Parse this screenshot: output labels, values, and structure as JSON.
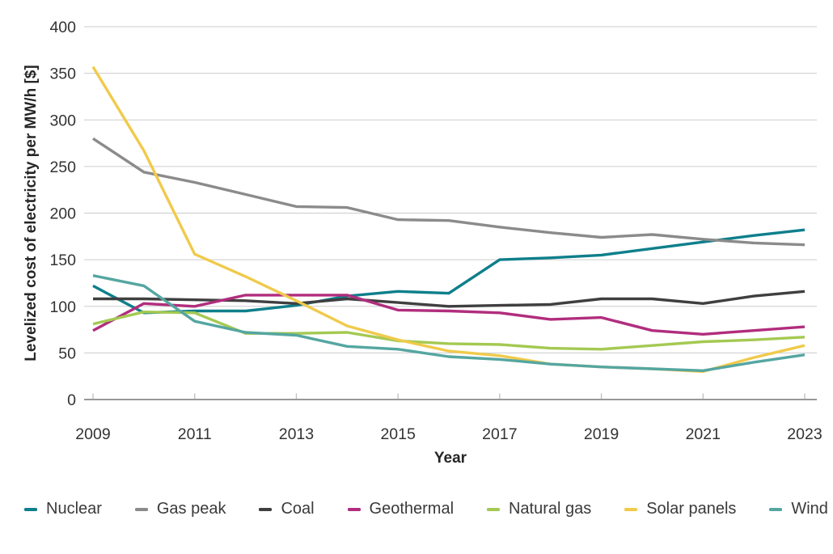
{
  "chart_data": {
    "type": "line",
    "title": "",
    "xlabel": "Year",
    "ylabel": "Levelized cost of electricity per MW/h [$]",
    "x": [
      2009,
      2010,
      2011,
      2012,
      2013,
      2014,
      2015,
      2016,
      2017,
      2018,
      2019,
      2020,
      2021,
      2022,
      2023
    ],
    "x_tick_years": [
      2009,
      2011,
      2013,
      2015,
      2017,
      2019,
      2021,
      2023
    ],
    "y_ticks": [
      0,
      50,
      100,
      150,
      200,
      250,
      300,
      350,
      400
    ],
    "ylim": [
      0,
      400
    ],
    "grid": "horizontal",
    "legend_position": "bottom",
    "colors": {
      "gridline": "#cccccc",
      "axis_line": "#8a8a8a",
      "tick_mark": "#bdbdbd",
      "text": "#333333"
    },
    "series": [
      {
        "id": "nuclear",
        "name": "Nuclear",
        "color": "#0e7f8b",
        "values": [
          122,
          93,
          95,
          95,
          101,
          111,
          116,
          114,
          150,
          152,
          155,
          162,
          169,
          176,
          182
        ]
      },
      {
        "id": "gas-peak",
        "name": "Gas peak",
        "color": "#8b8b8b",
        "values": [
          280,
          244,
          233,
          220,
          207,
          206,
          193,
          192,
          185,
          179,
          174,
          177,
          172,
          168,
          166
        ]
      },
      {
        "id": "coal",
        "name": "Coal",
        "color": "#3f3f3f",
        "values": [
          108,
          108,
          107,
          106,
          103,
          108,
          104,
          100,
          101,
          102,
          108,
          108,
          103,
          111,
          116
        ]
      },
      {
        "id": "geothermal",
        "name": "Geothermal",
        "color": "#b12d7d",
        "values": [
          74,
          103,
          100,
          112,
          112,
          112,
          96,
          95,
          93,
          86,
          88,
          74,
          70,
          74,
          78
        ]
      },
      {
        "id": "natural-gas",
        "name": "Natural gas",
        "color": "#a4c952",
        "values": [
          81,
          94,
          93,
          71,
          71,
          72,
          63,
          60,
          59,
          55,
          54,
          58,
          62,
          64,
          67
        ]
      },
      {
        "id": "solar-panels",
        "name": "Solar panels",
        "color": "#f0ca4b",
        "values": [
          357,
          267,
          156,
          132,
          106,
          79,
          64,
          52,
          47,
          38,
          35,
          33,
          30,
          45,
          58
        ]
      },
      {
        "id": "wind",
        "name": "Wind",
        "color": "#55a6a1",
        "values": [
          133,
          122,
          84,
          72,
          69,
          57,
          54,
          46,
          43,
          38,
          35,
          33,
          31,
          40,
          48
        ]
      }
    ]
  }
}
